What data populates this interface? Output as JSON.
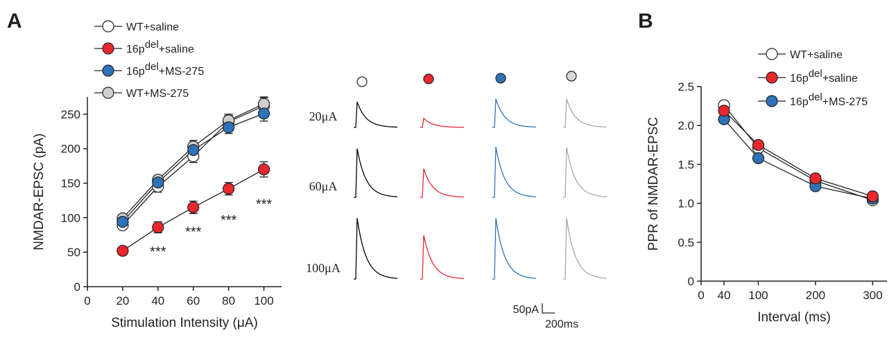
{
  "figure": {
    "panel_a_letter": "A",
    "panel_b_letter": "B",
    "legend_a": [
      {
        "label": "WT+saline",
        "base": "WT+saline",
        "sup": "",
        "after": "",
        "color": "#ffffff"
      },
      {
        "label": "16pdel+saline",
        "base": "16p",
        "sup": "del",
        "after": "+saline",
        "color": "#e8282e"
      },
      {
        "label": "16pdel+MS-275",
        "base": "16p",
        "sup": "del",
        "after": "+MS-275",
        "color": "#2e72b8"
      },
      {
        "label": "WT+MS-275",
        "base": "WT+MS-275",
        "sup": "",
        "after": "",
        "color": "#cfcfcf"
      }
    ],
    "legend_b": [
      {
        "label": "WT+saline",
        "base": "WT+saline",
        "sup": "",
        "after": "",
        "color": "#ffffff"
      },
      {
        "label": "16pdel+saline",
        "base": "16p",
        "sup": "del",
        "after": "+saline",
        "color": "#e8282e"
      },
      {
        "label": "16pdel+MS-275",
        "base": "16p",
        "sup": "del",
        "after": "+MS-275",
        "color": "#2e72b8"
      }
    ],
    "traces": {
      "row_labels": [
        "20μA",
        "60μA",
        "100μA"
      ],
      "column_colors": [
        "#000000",
        "#e8282e",
        "#2e72b8",
        "#a6a6a6"
      ],
      "column_marker_fills": [
        "#ffffff",
        "#e8282e",
        "#2e72b8",
        "#d9d9d9"
      ],
      "relative_peaks": [
        [
          0.42,
          0.15,
          0.47,
          0.47
        ],
        [
          0.8,
          0.47,
          0.83,
          0.82
        ],
        [
          1.0,
          0.72,
          1.0,
          1.0
        ]
      ],
      "scale_bar_amplitude": "50pA",
      "scale_bar_time": "200ms"
    }
  },
  "chart_data": [
    {
      "type": "line",
      "panel": "A",
      "xlabel": "Stimulation Intensity (μA)",
      "ylabel": "NMDAR-EPSC (pA)",
      "xlim": [
        0,
        110
      ],
      "ylim": [
        0,
        275
      ],
      "xticks": [
        0,
        20,
        40,
        60,
        80,
        100
      ],
      "yticks": [
        0,
        50,
        100,
        150,
        200,
        250
      ],
      "x": [
        20,
        40,
        60,
        80,
        100
      ],
      "series": [
        {
          "name": "WT+saline",
          "values": [
            89,
            145,
            189,
            239,
            262
          ],
          "errors": [
            4,
            8,
            9,
            9,
            12
          ],
          "color": "#ffffff"
        },
        {
          "name": "WT+MS-275",
          "values": [
            99,
            155,
            203,
            241,
            265
          ],
          "errors": [
            4,
            5,
            9,
            9,
            10
          ],
          "color": "#cfcfcf"
        },
        {
          "name": "16pdel+MS-275",
          "values": [
            94,
            151,
            198,
            231,
            251
          ],
          "errors": [
            4,
            6,
            8,
            9,
            11
          ],
          "color": "#2e72b8"
        },
        {
          "name": "16pdel+saline",
          "values": [
            52,
            86,
            115,
            142,
            170
          ],
          "errors": [
            3,
            8,
            9,
            9,
            11
          ],
          "color": "#e8282e"
        }
      ],
      "annotations": [
        {
          "x": 40,
          "y": 52,
          "text": "***"
        },
        {
          "x": 60,
          "y": 81,
          "text": "***"
        },
        {
          "x": 80,
          "y": 98,
          "text": "***"
        },
        {
          "x": 100,
          "y": 121,
          "text": "***"
        }
      ],
      "grid": false,
      "legend": "top-left"
    },
    {
      "type": "line",
      "panel": "B",
      "xlabel": "Interval (ms)",
      "ylabel": "PPR of NMDAR-EPSC",
      "xlim": [
        0,
        325
      ],
      "ylim": [
        0,
        2.5
      ],
      "xticks": [
        0,
        40,
        100,
        200,
        300
      ],
      "yticks": [
        0,
        0.5,
        1.0,
        1.5,
        2.0,
        2.5
      ],
      "ytick_labels": [
        "0",
        "0.5",
        "1.0",
        "1.5",
        "2.0",
        "2.5"
      ],
      "x": [
        40,
        100,
        200,
        300
      ],
      "series": [
        {
          "name": "WT+saline",
          "values": [
            2.26,
            1.71,
            1.29,
            1.04
          ],
          "color": "#ffffff"
        },
        {
          "name": "16pdel+MS-275",
          "values": [
            2.08,
            1.58,
            1.22,
            1.06
          ],
          "color": "#2e72b8"
        },
        {
          "name": "16pdel+saline",
          "values": [
            2.19,
            1.75,
            1.32,
            1.09
          ],
          "color": "#e8282e"
        }
      ],
      "grid": false,
      "legend": "top"
    }
  ]
}
